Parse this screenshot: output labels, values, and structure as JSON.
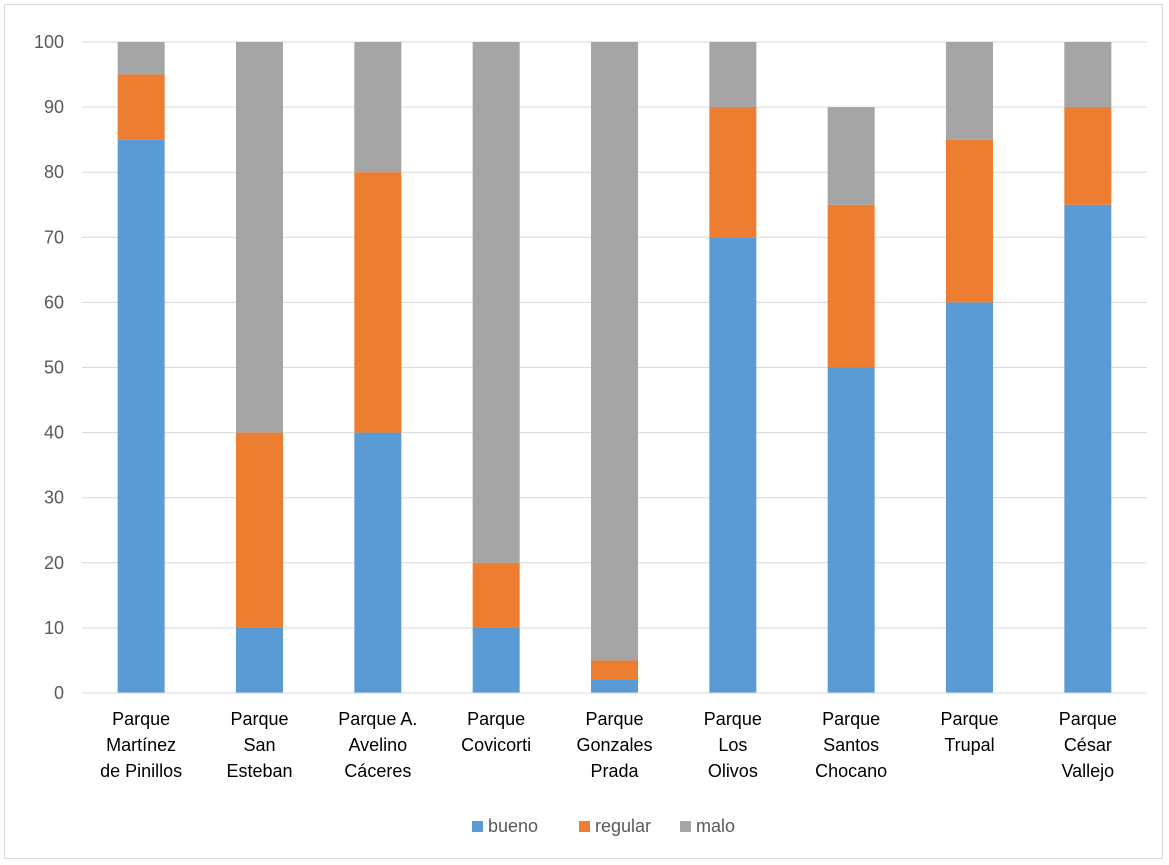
{
  "chart_data": {
    "type": "bar",
    "stacked": true,
    "title": "",
    "xlabel": "",
    "ylabel": "",
    "ylim": [
      0,
      100
    ],
    "yticks": [
      0,
      10,
      20,
      30,
      40,
      50,
      60,
      70,
      80,
      90,
      100
    ],
    "grid": true,
    "legend_position": "bottom",
    "categories": [
      [
        "Parque",
        "Martínez",
        "de Pinillos"
      ],
      [
        "Parque",
        "San",
        "Esteban"
      ],
      [
        "Parque A.",
        "Avelino",
        "Cáceres"
      ],
      [
        "Parque",
        "Covicorti"
      ],
      [
        "Parque",
        "Gonzales",
        "Prada"
      ],
      [
        "Parque",
        "Los",
        "Olivos"
      ],
      [
        "Parque",
        "Santos",
        "Chocano"
      ],
      [
        "Parque",
        "Trupal"
      ],
      [
        "Parque",
        "César",
        "Vallejo"
      ]
    ],
    "series": [
      {
        "name": "bueno",
        "color": "#5b9bd5",
        "values": [
          85,
          10,
          40,
          10,
          2,
          70,
          50,
          60,
          75
        ]
      },
      {
        "name": "regular",
        "color": "#ed7d31",
        "values": [
          10,
          30,
          40,
          10,
          3,
          20,
          25,
          25,
          15
        ]
      },
      {
        "name": "malo",
        "color": "#a5a5a5",
        "values": [
          5,
          60,
          20,
          80,
          95,
          10,
          15,
          15,
          10
        ]
      }
    ]
  }
}
